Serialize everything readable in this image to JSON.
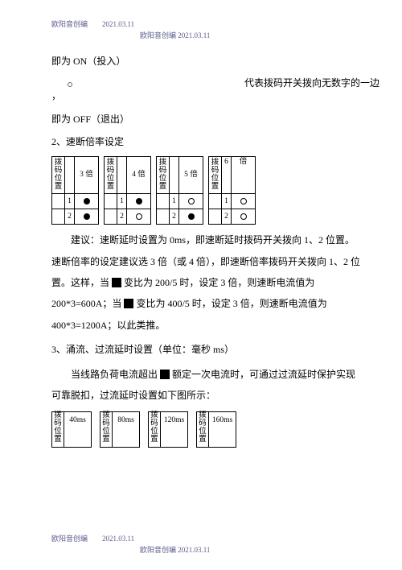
{
  "header": {
    "line1": "欧阳音创编　　2021.03.11",
    "line2": "欧阳音创编  2021.03.11"
  },
  "footer": {
    "line1": "欧阳音创编　　2021.03.11",
    "line2": "欧阳音创编  2021.03.11"
  },
  "text": {
    "onLine": "即为 ON（投入）",
    "rightNote": "代表拨码开关拨向无数字的一边",
    "comma": "，",
    "offLine": "即为 OFF（退出）",
    "section2": "2、速断倍率设定",
    "advice": "建议：速断延时设置为 0ms，即速断延时拨码开关拨向 1、2 位置。速断倍率的设定建议选 3 倍（或 4 倍），即速断倍率拨码开关拨向 1、2 位置。这样，当 ▮ 变比为 200/5 时，设定 3 倍，则速断电流值为 200*3=600A；当 ▮ 变比为 400/5 时，设定 3 倍，则速断电流值为 400*3=1200A；以此类推。",
    "section3": "3、涌流、过流延时设置（单位：毫秒 ms）",
    "para3": "当线路负荷电流超出 ▮ 额定一次电流时，可通过过流延时保护实现可靠脱扣，过流延时设置如下图所示："
  },
  "table1": {
    "vlabel": "拨码位置",
    "heads": [
      "3 倍",
      "4 倍",
      "5 倍",
      "6 倍"
    ],
    "rows": [
      {
        "n": "1",
        "marks": [
          "filled",
          "filled",
          "hollow",
          "hollow"
        ]
      },
      {
        "n": "2",
        "marks": [
          "filled",
          "hollow",
          "filled",
          "hollow"
        ]
      }
    ]
  },
  "table2": {
    "vlabel": "拨码位置",
    "heads": [
      "40ms",
      "80ms",
      "120ms",
      "160ms"
    ]
  },
  "colors": {
    "text": "#000000",
    "headerText": "#5b5b8c",
    "bg": "#ffffff",
    "border": "#000000"
  }
}
